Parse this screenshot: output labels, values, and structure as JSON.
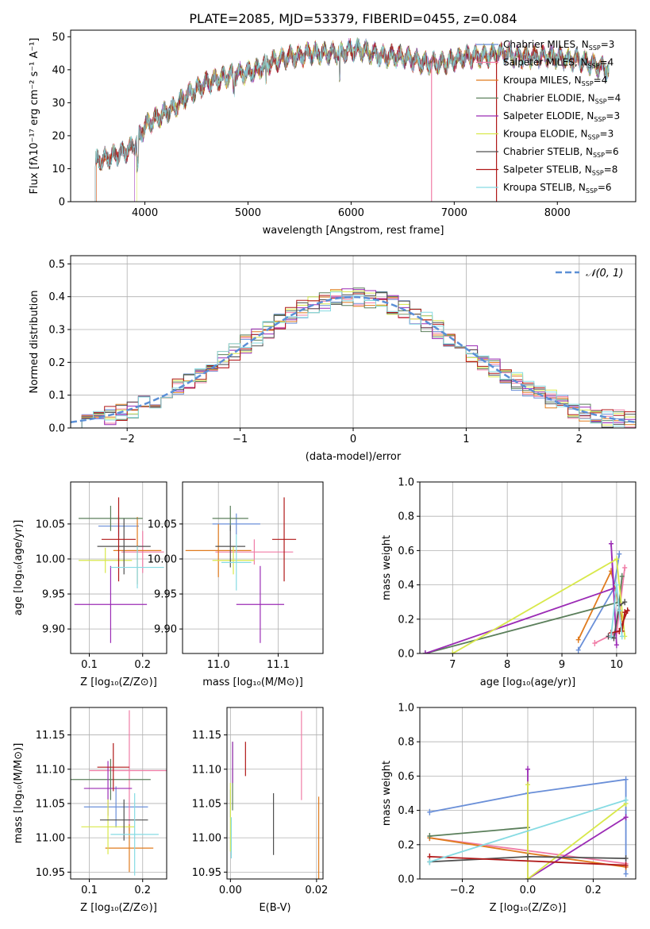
{
  "title": "PLATE=2085, MJD=53379, FIBERID=0455, z=0.084",
  "colors": [
    "#6a8fd8",
    "#f07ca6",
    "#e07b1e",
    "#5b7f5b",
    "#9b2bb5",
    "#d8e84a",
    "#505050",
    "#b01818",
    "#86dbe3"
  ],
  "chart_data": [
    {
      "id": "spectrum",
      "type": "line",
      "xlabel": "wavelength [Angstrom, rest frame]",
      "ylabel": "Flux [fλ10⁻¹⁷ erg cm⁻² s⁻¹ A⁻¹]",
      "xlim": [
        3280,
        8760
      ],
      "ylim": [
        0,
        52
      ],
      "xticks": [
        "4000",
        "5000",
        "6000",
        "7000",
        "8000"
      ],
      "yticks": [
        "0",
        "10",
        "20",
        "30",
        "40",
        "50"
      ],
      "legend_position": "top-right",
      "grid": false,
      "series": [
        {
          "name": "Chabrier MILES, N_SSP=3"
        },
        {
          "name": "Salpeter MILES, N_SSP=4"
        },
        {
          "name": "Kroupa MILES, N_SSP=4"
        },
        {
          "name": "Chabrier ELODIE, N_SSP=4"
        },
        {
          "name": "Salpeter ELODIE, N_SSP=3"
        },
        {
          "name": "Kroupa ELODIE, N_SSP=3"
        },
        {
          "name": "Chabrier STELIB, N_SSP=6"
        },
        {
          "name": "Salpeter STELIB, N_SSP=8"
        },
        {
          "name": "Kroupa STELIB, N_SSP=6"
        }
      ],
      "continuum": {
        "x": [
          3500,
          3600,
          3700,
          3800,
          3900,
          4000,
          4100,
          4200,
          4300,
          4400,
          4500,
          4600,
          4700,
          4800,
          4900,
          5000,
          5100,
          5200,
          5300,
          5400,
          5500,
          5600,
          5700,
          5800,
          5900,
          6000,
          6100,
          6200,
          6300,
          6400,
          6500,
          6600,
          6700,
          6800,
          6900,
          7000,
          7100,
          7200,
          7300,
          7400,
          7500,
          7600,
          7700,
          7800,
          7900,
          8000,
          8100,
          8200,
          8300,
          8400,
          8500
        ],
        "y": [
          12,
          13,
          14,
          15,
          17,
          23,
          25,
          27,
          29,
          32,
          34,
          36,
          37,
          38,
          39,
          39,
          40,
          42,
          43,
          44,
          44,
          45,
          45,
          45,
          45,
          46,
          46,
          45,
          44,
          44,
          44,
          43,
          42,
          42,
          42,
          43,
          44,
          44,
          44,
          45,
          45,
          44,
          44,
          44,
          44,
          44,
          43,
          43,
          42,
          41,
          40
        ]
      }
    },
    {
      "id": "residuals",
      "type": "area",
      "xlabel": "(data-model)/error",
      "ylabel": "Normed distribution",
      "xlim": [
        -2.5,
        2.5
      ],
      "ylim": [
        0,
        0.525
      ],
      "xticks": [
        "−2",
        "−1",
        "0",
        "1",
        "2"
      ],
      "yticks": [
        "0.0",
        "0.1",
        "0.2",
        "0.3",
        "0.4",
        "0.5"
      ],
      "grid": true,
      "legend_position": "top-right",
      "reference_curve": "𝒩(0, 1)",
      "bin_width": 0.1
    },
    {
      "id": "age-vs-Z",
      "type": "scatter",
      "xlabel": "Z [log₁₀(Z/Z⊙)]",
      "ylabel": "age  [log₁₀(age/yr)]",
      "xlim": [
        0.065,
        0.245
      ],
      "ylim": [
        9.865,
        10.11
      ],
      "xticks": [
        "0.1",
        "0.2"
      ],
      "yticks": [
        "9.90",
        "9.95",
        "10.00",
        "10.05"
      ],
      "grid": true,
      "points": [
        {
          "x": 0.155,
          "dx": 0.038,
          "y": 10.047,
          "dy": 0.015
        },
        {
          "x": 0.2,
          "dx": 0.04,
          "y": 10.01,
          "dy": 0.03
        },
        {
          "x": 0.19,
          "dx": 0.045,
          "y": 10.012,
          "dy": 0.048
        },
        {
          "x": 0.14,
          "dx": 0.06,
          "y": 10.058,
          "dy": 0.018
        },
        {
          "x": 0.14,
          "dx": 0.068,
          "y": 9.935,
          "dy": 0.055
        },
        {
          "x": 0.13,
          "dx": 0.05,
          "y": 9.998,
          "dy": 0.018
        },
        {
          "x": 0.165,
          "dx": 0.05,
          "y": 10.018,
          "dy": 0.04
        },
        {
          "x": 0.155,
          "dx": 0.032,
          "y": 10.028,
          "dy": 0.06
        },
        {
          "x": 0.19,
          "dx": 0.05,
          "y": 9.988,
          "dy": 0.03
        }
      ]
    },
    {
      "id": "age-vs-mass",
      "type": "scatter",
      "xlabel": "mass [log₁₀(M/M⊙)]",
      "ylabel": "",
      "xlim": [
        10.94,
        11.175
      ],
      "ylim": [
        9.865,
        10.11
      ],
      "xticks": [
        "11.0",
        "11.1"
      ],
      "yticks": [
        "9.90",
        "9.95",
        "10.00",
        "10.05"
      ],
      "grid": true,
      "points": [
        {
          "x": 11.03,
          "dx": 0.04,
          "y": 10.05,
          "dy": 0.015
        },
        {
          "x": 11.06,
          "dx": 0.065,
          "y": 10.01,
          "dy": 0.018
        },
        {
          "x": 11.0,
          "dx": 0.055,
          "y": 10.012,
          "dy": 0.038
        },
        {
          "x": 11.02,
          "dx": 0.03,
          "y": 10.058,
          "dy": 0.018
        },
        {
          "x": 11.07,
          "dx": 0.04,
          "y": 9.935,
          "dy": 0.055
        },
        {
          "x": 11.025,
          "dx": 0.035,
          "y": 9.998,
          "dy": 0.02
        },
        {
          "x": 11.02,
          "dx": 0.025,
          "y": 10.018,
          "dy": 0.03
        },
        {
          "x": 11.11,
          "dx": 0.02,
          "y": 10.028,
          "dy": 0.06
        },
        {
          "x": 11.03,
          "dx": 0.025,
          "y": 9.995,
          "dy": 0.04
        }
      ]
    },
    {
      "id": "weight-vs-age",
      "type": "line",
      "xlabel": "age  [log₁₀(age/yr)]",
      "ylabel": "mass weight",
      "xlim": [
        6.4,
        10.35
      ],
      "ylim": [
        0,
        1.0
      ],
      "xticks": [
        "7",
        "8",
        "9",
        "10"
      ],
      "yticks": [
        "0.0",
        "0.2",
        "0.4",
        "0.6",
        "0.8",
        "1.0"
      ],
      "grid": true,
      "series": [
        {
          "x": [
            9.3,
            9.95,
            10.05
          ],
          "y": [
            0.02,
            0.38,
            0.58
          ]
        },
        {
          "x": [
            9.6,
            9.85,
            10.0,
            10.15
          ],
          "y": [
            0.06,
            0.1,
            0.12,
            0.5
          ]
        },
        {
          "x": [
            9.3,
            9.9,
            10.1
          ],
          "y": [
            0.08,
            0.48,
            0.2
          ]
        },
        {
          "x": [
            6.5,
            10.05,
            10.1
          ],
          "y": [
            0.0,
            0.3,
            0.45
          ]
        },
        {
          "x": [
            6.5,
            9.95,
            9.9,
            10.0
          ],
          "y": [
            0.0,
            0.38,
            0.64,
            0.05
          ]
        },
        {
          "x": [
            7.0,
            10.0,
            10.15
          ],
          "y": [
            0.0,
            0.55,
            0.1
          ]
        },
        {
          "x": [
            9.85,
            9.95,
            10.05,
            10.15
          ],
          "y": [
            0.1,
            0.09,
            0.28,
            0.3
          ]
        },
        {
          "x": [
            9.9,
            10.05,
            10.2,
            10.15,
            10.1
          ],
          "y": [
            0.12,
            0.13,
            0.25,
            0.24,
            0.13
          ]
        },
        {
          "x": [
            9.9,
            10.0,
            10.05,
            10.1
          ],
          "y": [
            0.1,
            0.4,
            0.25,
            0.1
          ]
        }
      ]
    },
    {
      "id": "mass-vs-Z",
      "type": "scatter",
      "xlabel": "Z [log₁₀(Z/Z⊙)]",
      "ylabel": "mass [log₁₀(M/M⊙)]",
      "xlim": [
        0.065,
        0.245
      ],
      "ylim": [
        10.94,
        11.19
      ],
      "xticks": [
        "0.1",
        "0.2"
      ],
      "yticks": [
        "10.95",
        "11.00",
        "11.05",
        "11.10",
        "11.15"
      ],
      "grid": true,
      "points": [
        {
          "x": 0.15,
          "dx": 0.06,
          "y": 11.045,
          "dy": 0.03
        },
        {
          "x": 0.175,
          "dx": 0.075,
          "y": 11.098,
          "dy": 0.088
        },
        {
          "x": 0.175,
          "dx": 0.045,
          "y": 10.985,
          "dy": 0.035
        },
        {
          "x": 0.14,
          "dx": 0.075,
          "y": 11.085,
          "dy": 0.03
        },
        {
          "x": 0.135,
          "dx": 0.045,
          "y": 11.072,
          "dy": 0.04
        },
        {
          "x": 0.135,
          "dx": 0.05,
          "y": 11.016,
          "dy": 0.04
        },
        {
          "x": 0.165,
          "dx": 0.045,
          "y": 11.026,
          "dy": 0.03
        },
        {
          "x": 0.145,
          "dx": 0.03,
          "y": 11.103,
          "dy": 0.035
        },
        {
          "x": 0.185,
          "dx": 0.045,
          "y": 11.005,
          "dy": 0.06
        }
      ]
    },
    {
      "id": "mass-vs-EBV",
      "type": "scatter",
      "xlabel": "E(B-V)",
      "ylabel": "",
      "xlim": [
        -0.0008,
        0.0215
      ],
      "ylim": [
        10.94,
        11.19
      ],
      "xticks": [
        "0.00",
        "0.02"
      ],
      "yticks": [
        "10.95",
        "11.00",
        "11.05",
        "11.10",
        "11.15"
      ],
      "grid": true,
      "points": [
        {
          "x": 0.0,
          "dx": 0,
          "y": 11.05,
          "dy": 0.02
        },
        {
          "x": 0.0165,
          "dx": 0,
          "y": 11.12,
          "dy": 0.065
        },
        {
          "x": 0.0205,
          "dx": 0,
          "y": 11.0,
          "dy": 0.06
        },
        {
          "x": 0.0005,
          "dx": 0,
          "y": 11.09,
          "dy": 0.05
        },
        {
          "x": 0.0005,
          "dx": 0,
          "y": 11.11,
          "dy": 0.03
        },
        {
          "x": 0.0,
          "dx": 0,
          "y": 11.03,
          "dy": 0.05
        },
        {
          "x": 0.01,
          "dx": 0,
          "y": 11.02,
          "dy": 0.045
        },
        {
          "x": 0.0035,
          "dx": 0,
          "y": 11.115,
          "dy": 0.025
        },
        {
          "x": 0.0002,
          "dx": 0,
          "y": 11.0,
          "dy": 0.03
        }
      ]
    },
    {
      "id": "weight-vs-Z",
      "type": "line",
      "xlabel": "Z [log₁₀(Z/Z⊙)]",
      "ylabel": "mass weight",
      "xlim": [
        -0.33,
        0.33
      ],
      "ylim": [
        0,
        1.0
      ],
      "xticks": [
        "−0.2",
        "0.0",
        "0.2"
      ],
      "yticks": [
        "0.0",
        "0.2",
        "0.4",
        "0.6",
        "0.8",
        "1.0"
      ],
      "grid": true,
      "series": [
        {
          "x": [
            -0.3,
            0.0,
            0.3,
            0.3
          ],
          "y": [
            0.39,
            0.5,
            0.58,
            0.03
          ]
        },
        {
          "x": [
            -0.3,
            0.3
          ],
          "y": [
            0.24,
            0.09
          ]
        },
        {
          "x": [
            -0.3,
            0.0,
            0.3
          ],
          "y": [
            0.24,
            0.15,
            0.07
          ]
        },
        {
          "x": [
            -0.3,
            0.0
          ],
          "y": [
            0.25,
            0.3
          ]
        },
        {
          "x": [
            0.0,
            0.0,
            0.3
          ],
          "y": [
            0.64,
            0.0,
            0.36
          ]
        },
        {
          "x": [
            0.0,
            0.0,
            0.3
          ],
          "y": [
            0.55,
            0.0,
            0.44
          ]
        },
        {
          "x": [
            -0.3,
            0.0,
            0.3
          ],
          "y": [
            0.1,
            0.13,
            0.12
          ]
        },
        {
          "x": [
            -0.3,
            0.3
          ],
          "y": [
            0.13,
            0.08
          ]
        },
        {
          "x": [
            -0.3,
            0.3
          ],
          "y": [
            0.1,
            0.46
          ]
        }
      ]
    }
  ]
}
